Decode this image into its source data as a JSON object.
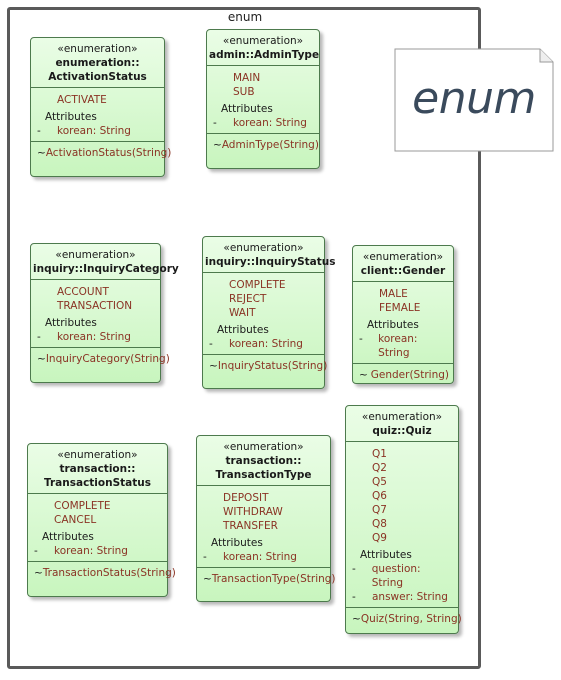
{
  "package": {
    "name": "enum"
  },
  "note": {
    "text": "enum"
  },
  "classes": {
    "activation_status": {
      "stereotype": "«enumeration»",
      "name_line1": "enumeration::",
      "name_line2": "ActivationStatus",
      "literals": [
        "ACTIVATE"
      ],
      "attributes_label": "Attributes",
      "attributes": [
        {
          "visibility": "-",
          "text": "korean: String"
        }
      ],
      "operations": [
        {
          "visibility": "~",
          "text": "ActivationStatus(String)"
        }
      ]
    },
    "admin_type": {
      "stereotype": "«enumeration»",
      "name_line1": "admin::AdminType",
      "literals": [
        "MAIN",
        "SUB"
      ],
      "attributes_label": "Attributes",
      "attributes": [
        {
          "visibility": "-",
          "text": "korean: String"
        }
      ],
      "operations": [
        {
          "visibility": "~",
          "text": "AdminType(String)"
        }
      ]
    },
    "inquiry_category": {
      "stereotype": "«enumeration»",
      "name_line1": "inquiry::InquiryCategory",
      "literals": [
        "ACCOUNT",
        "TRANSACTION"
      ],
      "attributes_label": "Attributes",
      "attributes": [
        {
          "visibility": "-",
          "text": "korean: String"
        }
      ],
      "operations": [
        {
          "visibility": "~",
          "text": "InquiryCategory(String)"
        }
      ]
    },
    "inquiry_status": {
      "stereotype": "«enumeration»",
      "name_line1": "inquiry::InquiryStatus",
      "literals": [
        "COMPLETE",
        "REJECT",
        "WAIT"
      ],
      "attributes_label": "Attributes",
      "attributes": [
        {
          "visibility": "-",
          "text": "korean: String"
        }
      ],
      "operations": [
        {
          "visibility": "~",
          "text": "InquiryStatus(String)"
        }
      ]
    },
    "gender": {
      "stereotype": "«enumeration»",
      "name_line1": "client::Gender",
      "literals": [
        "MALE",
        "FEMALE"
      ],
      "attributes_label": "Attributes",
      "attributes": [
        {
          "visibility": "-",
          "text": "korean: String"
        }
      ],
      "operations": [
        {
          "visibility": "~",
          "text": "Gender(String)"
        }
      ]
    },
    "transaction_status": {
      "stereotype": "«enumeration»",
      "name_line1": "transaction::",
      "name_line2": "TransactionStatus",
      "literals": [
        "COMPLETE",
        "CANCEL"
      ],
      "attributes_label": "Attributes",
      "attributes": [
        {
          "visibility": "-",
          "text": "korean: String"
        }
      ],
      "operations": [
        {
          "visibility": "~",
          "text": "TransactionStatus(String)"
        }
      ]
    },
    "transaction_type": {
      "stereotype": "«enumeration»",
      "name_line1": "transaction::",
      "name_line2": "TransactionType",
      "literals": [
        "DEPOSIT",
        "WITHDRAW",
        "TRANSFER"
      ],
      "attributes_label": "Attributes",
      "attributes": [
        {
          "visibility": "-",
          "text": "korean: String"
        }
      ],
      "operations": [
        {
          "visibility": "~",
          "text": "TransactionType(String)"
        }
      ]
    },
    "quiz": {
      "stereotype": "«enumeration»",
      "name_line1": "quiz::Quiz",
      "literals": [
        "Q1",
        "Q2",
        "Q5",
        "Q6",
        "Q7",
        "Q8",
        "Q9"
      ],
      "attributes_label": "Attributes",
      "attributes": [
        {
          "visibility": "-",
          "text": "question: String"
        },
        {
          "visibility": "-",
          "text": "answer: String"
        }
      ],
      "operations": [
        {
          "visibility": "~",
          "text": "Quiz(String, String)"
        }
      ]
    }
  }
}
